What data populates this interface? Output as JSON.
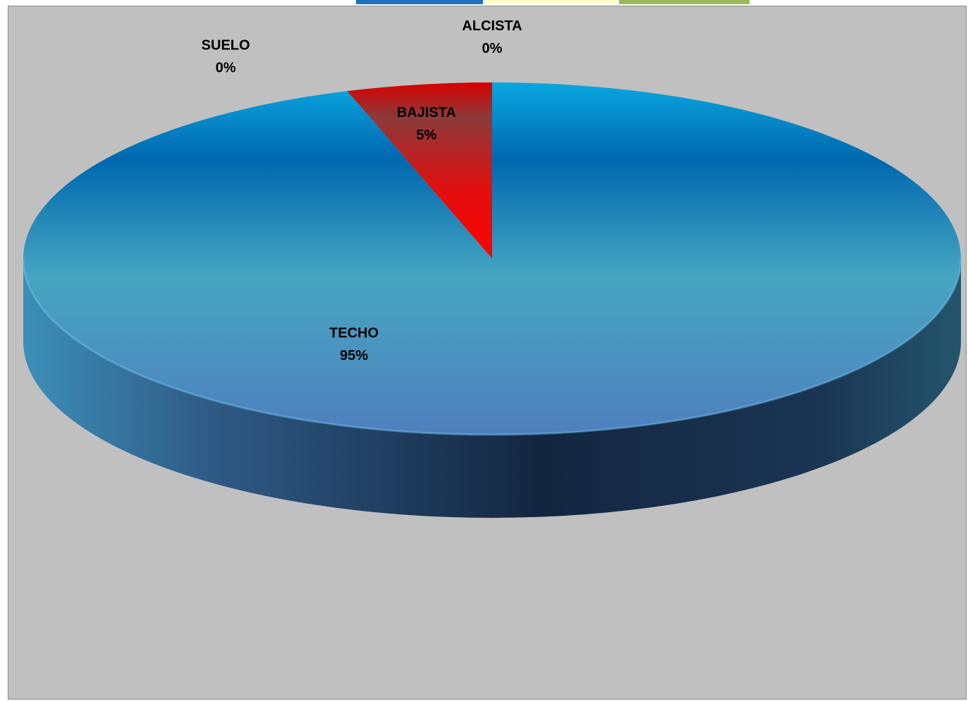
{
  "chart_data": {
    "type": "pie",
    "title": "",
    "slices": [
      {
        "name": "TECHO",
        "value": 95,
        "label": "95%",
        "color": "#3d8fc8"
      },
      {
        "name": "SUELO",
        "value": 0,
        "label": "0%",
        "color": "#4f81bd"
      },
      {
        "name": "BAJISTA",
        "value": 5,
        "label": "5%",
        "color": "#ff0000"
      },
      {
        "name": "ALCISTA",
        "value": 0,
        "label": "0%",
        "color": "#9bbb59"
      }
    ],
    "style": "3d"
  },
  "top_strip": {
    "colors": [
      "#1f6fbf",
      "#ffffcc",
      "#9bbb59"
    ]
  }
}
